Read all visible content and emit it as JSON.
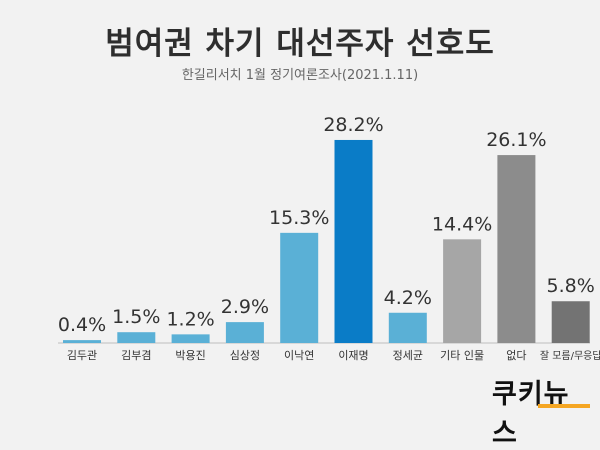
{
  "header": {
    "title": "범여권 차기 대선주자 선호도",
    "subtitle": "한길리서치 1월 정기여론조사(2021.1.11)"
  },
  "logo": {
    "text": "쿠키뉴스"
  },
  "colors": {
    "light_blue": "#5ab0d6",
    "dark_blue": "#0a7cc7",
    "gray": "#a6a6a6",
    "mid_gray": "#8c8c8c",
    "dark_gray": "#737373",
    "text": "#333333"
  },
  "chart_data": {
    "type": "bar",
    "title": "범여권 차기 대선주자 선호도",
    "subtitle": "한길리서치 1월 정기여론조사(2021.1.11)",
    "categories": [
      "김두관",
      "김부겸",
      "박용진",
      "심상정",
      "이낙연",
      "이재명",
      "정세균",
      "기타 인물",
      "없다",
      "잘 모름/무응답"
    ],
    "values": [
      0.4,
      1.5,
      1.2,
      2.9,
      15.3,
      28.2,
      4.2,
      14.4,
      26.1,
      5.8
    ],
    "labels": [
      "0.4%",
      "1.5%",
      "1.2%",
      "2.9%",
      "15.3%",
      "28.2%",
      "4.2%",
      "14.4%",
      "26.1%",
      "5.8%"
    ],
    "bar_colors": [
      "#5ab0d6",
      "#5ab0d6",
      "#5ab0d6",
      "#5ab0d6",
      "#5ab0d6",
      "#0a7cc7",
      "#5ab0d6",
      "#a6a6a6",
      "#8c8c8c",
      "#737373"
    ],
    "xlabel": "",
    "ylabel": "",
    "ylim": [
      0,
      30
    ],
    "grid": false,
    "legend": "none"
  }
}
